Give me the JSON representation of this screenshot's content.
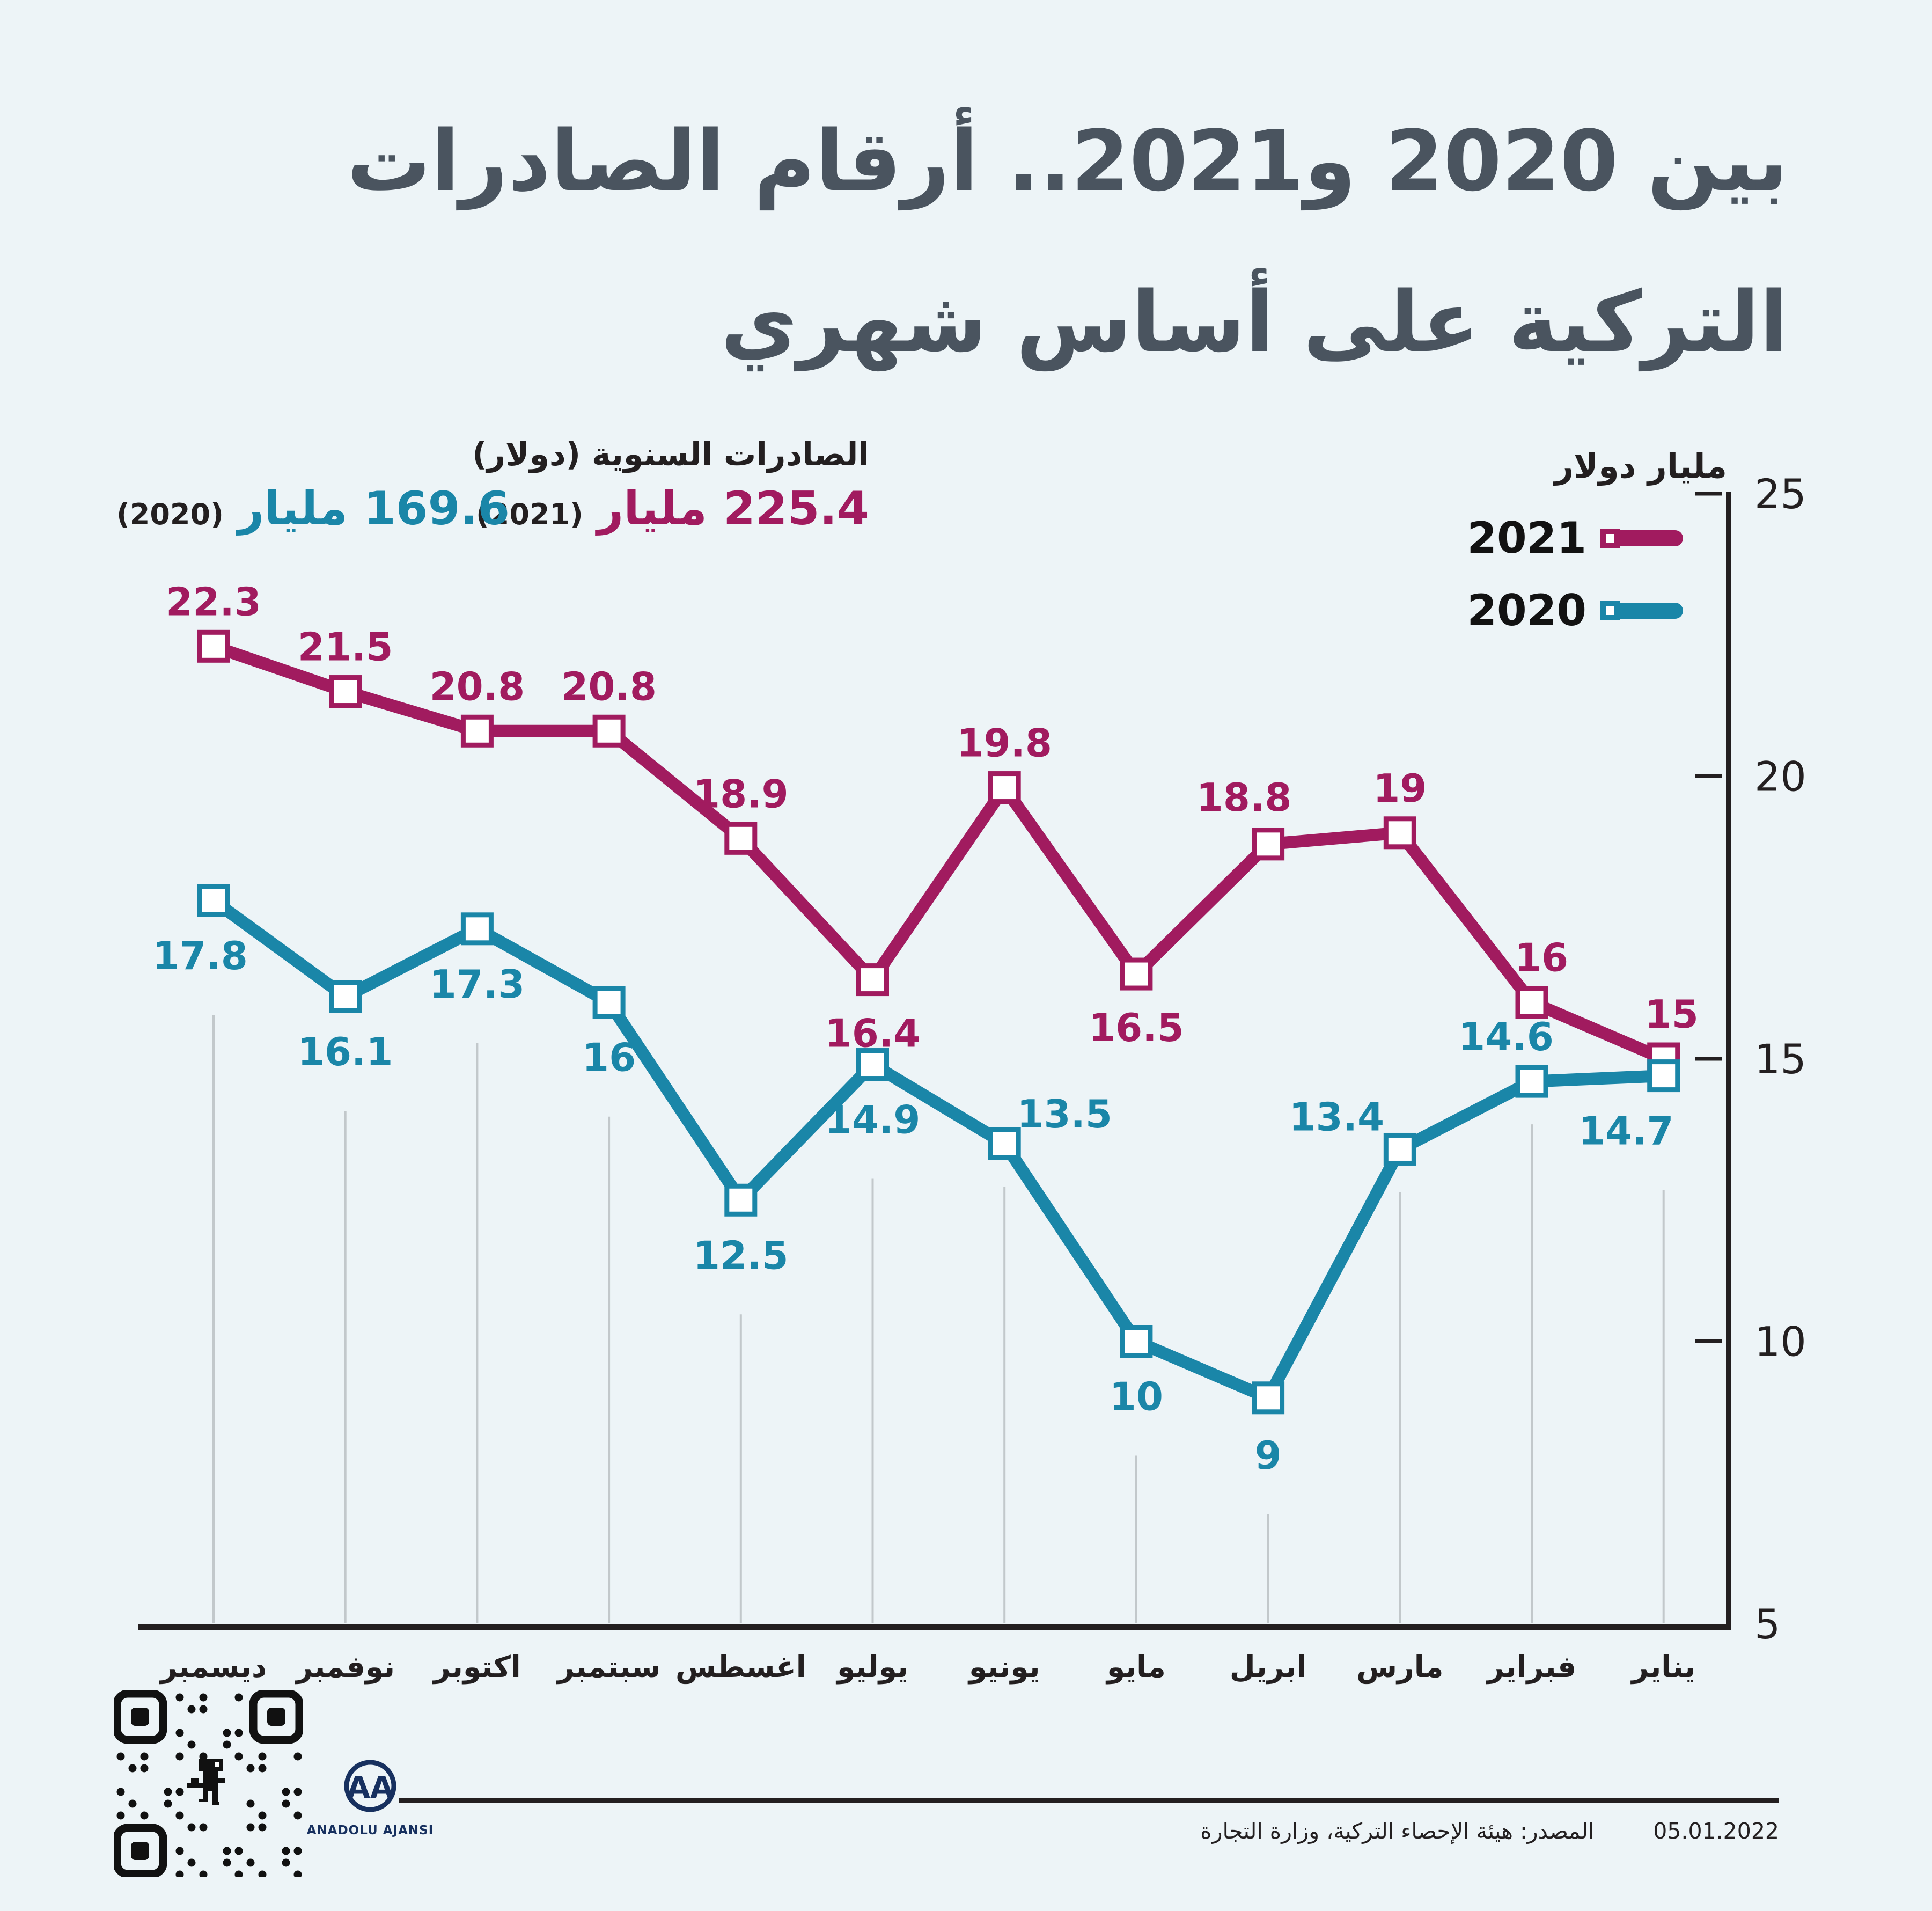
{
  "colors": {
    "background": "#edf4f7",
    "title": "#4a545f",
    "magenta": "#a11b5f",
    "teal": "#1a86a8",
    "text": "#231f20",
    "grid": "#c2c8cb",
    "navy": "#17305f"
  },
  "title": {
    "line1": "بين 2020 و2021.. أرقام الصادرات",
    "line2": "التركية على أساس شهري"
  },
  "annual": {
    "heading": "الصادرات السنوية (دولار)",
    "items": [
      {
        "value": "225.4 مليار",
        "year": "(2021)"
      },
      {
        "value": "169.6 مليار",
        "year": "(2020)"
      }
    ]
  },
  "legend": {
    "items": [
      {
        "label": "2021"
      },
      {
        "label": "2020"
      }
    ]
  },
  "chart_data": {
    "type": "line",
    "ylabel": "مليار دولار",
    "ylim": [
      5,
      25
    ],
    "yticks": [
      25,
      20,
      15,
      10,
      5
    ],
    "grid": "vertical-drop-lines",
    "legend_position": "top-right",
    "rtl": true,
    "categories": [
      "ديسمبر",
      "نوفمبر",
      "اكتوبر",
      "سبتمبر",
      "اغسطس",
      "يوليو",
      "يونيو",
      "مايو",
      "ابريل",
      "مارس",
      "فبراير",
      "يناير"
    ],
    "series": [
      {
        "name": "2021",
        "color": "#a11b5f",
        "values": [
          22.3,
          21.5,
          20.8,
          20.8,
          18.9,
          16.4,
          19.8,
          16.5,
          18.8,
          19,
          16,
          15
        ],
        "label_offsets": [
          [
            0,
            -58
          ],
          [
            0,
            -58
          ],
          [
            0,
            -58
          ],
          [
            0,
            -58
          ],
          [
            0,
            -58
          ],
          [
            0,
            125
          ],
          [
            0,
            -58
          ],
          [
            0,
            125
          ],
          [
            -45,
            -62
          ],
          [
            0,
            -58
          ],
          [
            18,
            -58
          ],
          [
            15,
            -58
          ]
        ]
      },
      {
        "name": "2020",
        "color": "#1a86a8",
        "values": [
          17.8,
          16.1,
          17.3,
          16,
          12.5,
          14.9,
          13.5,
          10,
          9,
          13.4,
          14.6,
          14.7
        ],
        "label_offsets": [
          [
            -25,
            128
          ],
          [
            0,
            128
          ],
          [
            0,
            128
          ],
          [
            0,
            128
          ],
          [
            0,
            128
          ],
          [
            0,
            128
          ],
          [
            112,
            -30
          ],
          [
            0,
            128
          ],
          [
            0,
            132
          ],
          [
            -118,
            -35
          ],
          [
            -48,
            -58
          ],
          [
            -70,
            128
          ]
        ]
      }
    ]
  },
  "footer": {
    "source": "المصدر: هيئة الإحصاء التركية، وزارة التجارة",
    "date": "05.01.2022",
    "agency_name": "ANADOLU AJANSI",
    "agency_monogram": "AA"
  }
}
